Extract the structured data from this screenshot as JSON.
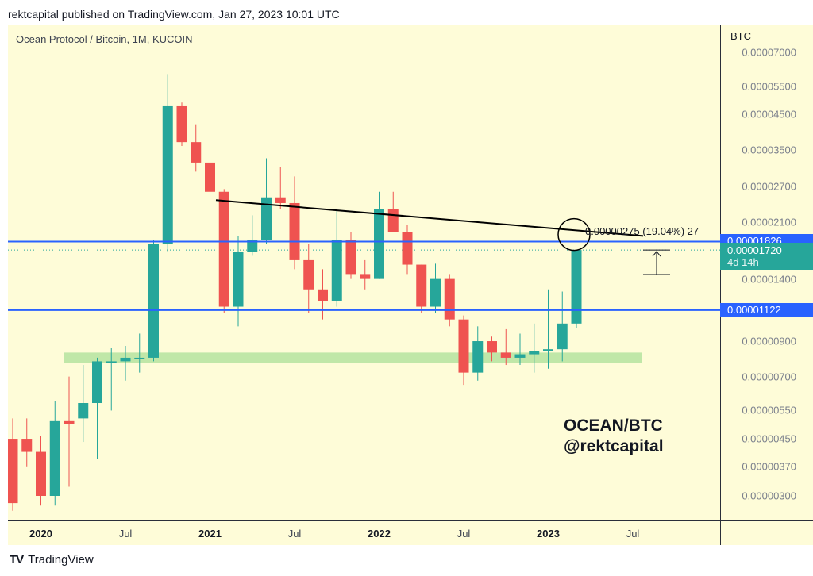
{
  "header": "rektcapital published on TradingView.com, Jan 27, 2023 10:01 UTC",
  "symbol_title": "Ocean Protocol / Bitcoin, 1M, KUCOIN",
  "watermark": {
    "line1": "OCEAN/BTC",
    "line2": "@rektcapital"
  },
  "footer": {
    "logo": "TV",
    "brand": "TradingView"
  },
  "y_axis_unit": "BTC",
  "measure_annotation": "0.00000275 (19.04%) 27",
  "current_price": {
    "value": "0.00001720",
    "countdown": "4d 14h"
  },
  "levels": [
    {
      "value": "0.00001826",
      "color": "#2962ff"
    },
    {
      "value": "0.00001122",
      "color": "#2962ff"
    }
  ],
  "colors": {
    "up": "#26a69a",
    "down": "#ef5350",
    "background": "#fefcd8",
    "level": "#2962ff",
    "support_zone": "#b5e3a0"
  },
  "chart_data": {
    "type": "candlestick",
    "scale": "log",
    "title": "Ocean Protocol / Bitcoin, 1M, KUCOIN",
    "y_ticks": [
      "0.00007000",
      "0.00005500",
      "0.00004500",
      "0.00003500",
      "0.00002700",
      "0.00002100",
      "0.00001400",
      "0.00000900",
      "0.00000700",
      "0.00000550",
      "0.00000450",
      "0.00000370",
      "0.00000300"
    ],
    "x_ticks": [
      {
        "label": "2020",
        "month": 2,
        "bold": true
      },
      {
        "label": "Jul",
        "month": 8,
        "bold": false
      },
      {
        "label": "2021",
        "month": 14,
        "bold": true
      },
      {
        "label": "Jul",
        "month": 20,
        "bold": false
      },
      {
        "label": "2022",
        "month": 26,
        "bold": true
      },
      {
        "label": "Jul",
        "month": 32,
        "bold": false
      },
      {
        "label": "2023",
        "month": 38,
        "bold": true
      },
      {
        "label": "Jul",
        "month": 44,
        "bold": false
      }
    ],
    "candles": [
      {
        "o": 4.5e-06,
        "h": 5.2e-06,
        "l": 2.7e-06,
        "c": 2.85e-06
      },
      {
        "o": 4.5e-06,
        "h": 5.2e-06,
        "l": 3.7e-06,
        "c": 4.1e-06
      },
      {
        "o": 4.1e-06,
        "h": 4.6e-06,
        "l": 2.8e-06,
        "c": 3e-06
      },
      {
        "o": 3e-06,
        "h": 5.9e-06,
        "l": 2.8e-06,
        "c": 5.1e-06
      },
      {
        "o": 5.1e-06,
        "h": 7e-06,
        "l": 3.2e-06,
        "c": 5e-06
      },
      {
        "o": 5.2e-06,
        "h": 7.6e-06,
        "l": 4.4e-06,
        "c": 5.8e-06
      },
      {
        "o": 5.8e-06,
        "h": 8e-06,
        "l": 3.9e-06,
        "c": 7.8e-06
      },
      {
        "o": 7.8e-06,
        "h": 8.6e-06,
        "l": 5.5e-06,
        "c": 7.8e-06
      },
      {
        "o": 7.8e-06,
        "h": 8.7e-06,
        "l": 6.8e-06,
        "c": 8e-06
      },
      {
        "o": 8e-06,
        "h": 9.5e-06,
        "l": 7.2e-06,
        "c": 8e-06
      },
      {
        "o": 8e-06,
        "h": 1.85e-05,
        "l": 7.8e-06,
        "c": 1.8e-05
      },
      {
        "o": 1.8e-05,
        "h": 6e-05,
        "l": 1.7e-05,
        "c": 4.8e-05
      },
      {
        "o": 4.8e-05,
        "h": 4.9e-05,
        "l": 3.6e-05,
        "c": 3.7e-05
      },
      {
        "o": 3.7e-05,
        "h": 4.2e-05,
        "l": 3e-05,
        "c": 3.2e-05
      },
      {
        "o": 3.2e-05,
        "h": 3.8e-05,
        "l": 2.6e-05,
        "c": 2.6e-05
      },
      {
        "o": 2.6e-05,
        "h": 2.65e-05,
        "l": 1.1e-05,
        "c": 1.15e-05
      },
      {
        "o": 1.15e-05,
        "h": 1.9e-05,
        "l": 1e-05,
        "c": 1.7e-05
      },
      {
        "o": 1.7e-05,
        "h": 2.2e-05,
        "l": 1.65e-05,
        "c": 1.85e-05
      },
      {
        "o": 1.85e-05,
        "h": 3.3e-05,
        "l": 1.8e-05,
        "c": 2.5e-05
      },
      {
        "o": 2.5e-05,
        "h": 3.1e-05,
        "l": 2.3e-05,
        "c": 2.4e-05
      },
      {
        "o": 2.4e-05,
        "h": 2.9e-05,
        "l": 1.5e-05,
        "c": 1.6e-05
      },
      {
        "o": 1.6e-05,
        "h": 1.8e-05,
        "l": 1.1e-05,
        "c": 1.3e-05
      },
      {
        "o": 1.3e-05,
        "h": 1.5e-05,
        "l": 1.05e-05,
        "c": 1.2e-05
      },
      {
        "o": 1.2e-05,
        "h": 2.3e-05,
        "l": 1.15e-05,
        "c": 1.85e-05
      },
      {
        "o": 1.85e-05,
        "h": 1.95e-05,
        "l": 1.4e-05,
        "c": 1.45e-05
      },
      {
        "o": 1.45e-05,
        "h": 1.6e-05,
        "l": 1.3e-05,
        "c": 1.4e-05
      },
      {
        "o": 1.4e-05,
        "h": 2.6e-05,
        "l": 1.4e-05,
        "c": 2.3e-05
      },
      {
        "o": 2.3e-05,
        "h": 2.6e-05,
        "l": 1.95e-05,
        "c": 1.95e-05
      },
      {
        "o": 1.95e-05,
        "h": 2.05e-05,
        "l": 1.45e-05,
        "c": 1.55e-05
      },
      {
        "o": 1.55e-05,
        "h": 1.55e-05,
        "l": 1.1e-05,
        "c": 1.15e-05
      },
      {
        "o": 1.15e-05,
        "h": 1.56e-05,
        "l": 1.1e-05,
        "c": 1.4e-05
      },
      {
        "o": 1.4e-05,
        "h": 1.45e-05,
        "l": 1e-05,
        "c": 1.05e-05
      },
      {
        "o": 1.05e-05,
        "h": 1.08e-05,
        "l": 6.6e-06,
        "c": 7.2e-06
      },
      {
        "o": 7.2e-06,
        "h": 1e-05,
        "l": 6.8e-06,
        "c": 9e-06
      },
      {
        "o": 9e-06,
        "h": 9.3e-06,
        "l": 7.8e-06,
        "c": 8.3e-06
      },
      {
        "o": 8.3e-06,
        "h": 9.8e-06,
        "l": 7.6e-06,
        "c": 8e-06
      },
      {
        "o": 8e-06,
        "h": 9.5e-06,
        "l": 7.6e-06,
        "c": 8.2e-06
      },
      {
        "o": 8.2e-06,
        "h": 1.02e-05,
        "l": 7.2e-06,
        "c": 8.4e-06
      },
      {
        "o": 8.4e-06,
        "h": 1.3e-05,
        "l": 7.4e-06,
        "c": 8.5e-06
      },
      {
        "o": 8.5e-06,
        "h": 1.28e-05,
        "l": 7.8e-06,
        "c": 1.02e-05
      },
      {
        "o": 1.02e-05,
        "h": 1.72e-05,
        "l": 9.9e-06,
        "c": 1.72e-05
      }
    ]
  }
}
